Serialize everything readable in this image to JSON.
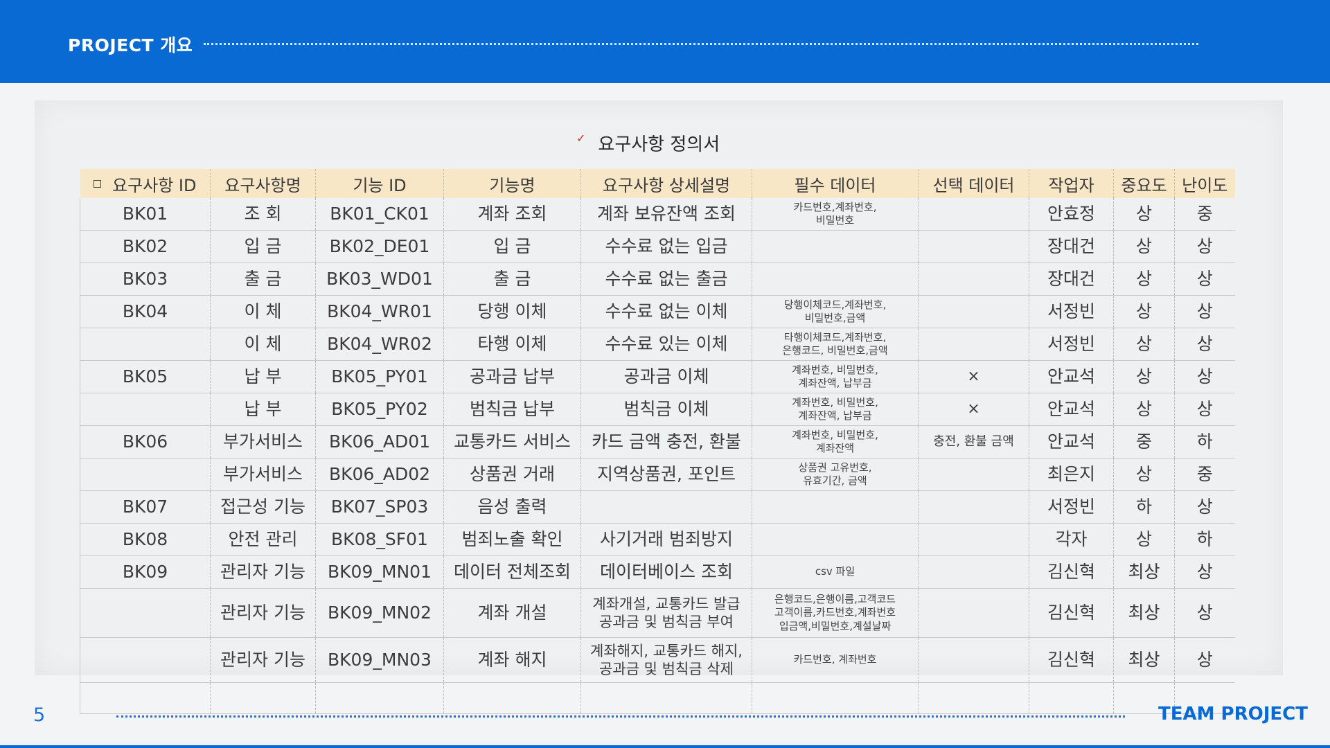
{
  "header": {
    "title": "PROJECT 개요"
  },
  "document": {
    "title": "요구사항 정의서"
  },
  "table": {
    "headers": [
      "요구사항 ID",
      "요구사항명",
      "기능 ID",
      "기능명",
      "요구사항 상세설명",
      "필수 데이터",
      "선택 데이터",
      "작업자",
      "중요도",
      "난이도"
    ],
    "rows": [
      {
        "req_id": "BK01",
        "req_name": "조 회",
        "func_id": "BK01_CK01",
        "func_name": "계좌 조회",
        "detail": "계좌 보유잔액 조회",
        "required": "카드번호,계좌번호,\n비밀번호",
        "optional": "",
        "worker": "안효정",
        "importance": "상",
        "difficulty": "중"
      },
      {
        "req_id": "BK02",
        "req_name": "입 금",
        "func_id": "BK02_DE01",
        "func_name": "입 금",
        "detail": "수수료 없는 입금",
        "required": "",
        "optional": "",
        "worker": "장대건",
        "importance": "상",
        "difficulty": "상"
      },
      {
        "req_id": "BK03",
        "req_name": "출 금",
        "func_id": "BK03_WD01",
        "func_name": "출 금",
        "detail": "수수료 없는 출금",
        "required": "",
        "optional": "",
        "worker": "장대건",
        "importance": "상",
        "difficulty": "상"
      },
      {
        "req_id": "BK04",
        "req_name": "이 체",
        "func_id": "BK04_WR01",
        "func_name": "당행 이체",
        "detail": "수수료 없는 이체",
        "required": "당행이체코드,계좌번호,\n비밀번호,금액",
        "optional": "",
        "worker": "서정빈",
        "importance": "상",
        "difficulty": "상"
      },
      {
        "req_id": "",
        "req_name": "이 체",
        "func_id": "BK04_WR02",
        "func_name": "타행 이체",
        "detail": "수수료 있는 이체",
        "required": "타행이체코드,계좌번호,\n은행코드, 비밀번호,금액",
        "optional": "",
        "worker": "서정빈",
        "importance": "상",
        "difficulty": "상"
      },
      {
        "req_id": "BK05",
        "req_name": "납 부",
        "func_id": "BK05_PY01",
        "func_name": "공과금 납부",
        "detail": "공과금 이체",
        "required": "계좌번호, 비밀번호,\n계좌잔액, 납부금",
        "optional": "×",
        "worker": "안교석",
        "importance": "상",
        "difficulty": "상"
      },
      {
        "req_id": "",
        "req_name": "납 부",
        "func_id": "BK05_PY02",
        "func_name": "범칙금 납부",
        "detail": "범칙금 이체",
        "required": "계좌번호, 비밀번호,\n계좌잔액, 납부금",
        "optional": "×",
        "worker": "안교석",
        "importance": "상",
        "difficulty": "상"
      },
      {
        "req_id": "BK06",
        "req_name": "부가서비스",
        "func_id": "BK06_AD01",
        "func_name": "교통카드 서비스",
        "detail": "카드 금액 충전, 환불",
        "required": "계좌번호, 비밀번호,\n계좌잔액",
        "optional": "충전, 환불 금액",
        "worker": "안교석",
        "importance": "중",
        "difficulty": "하"
      },
      {
        "req_id": "",
        "req_name": "부가서비스",
        "func_id": "BK06_AD02",
        "func_name": "상품권 거래",
        "detail": "지역상품권, 포인트",
        "required": "상품권 고유번호,\n유효기간, 금액",
        "optional": "",
        "worker": "최은지",
        "importance": "상",
        "difficulty": "중"
      },
      {
        "req_id": "BK07",
        "req_name": "접근성 기능",
        "func_id": "BK07_SP03",
        "func_name": "음성 출력",
        "detail": "",
        "required": "",
        "optional": "",
        "worker": "서정빈",
        "importance": "하",
        "difficulty": "상"
      },
      {
        "req_id": "BK08",
        "req_name": "안전 관리",
        "func_id": "BK08_SF01",
        "func_name": "범죄노출 확인",
        "detail": "사기거래  범죄방지",
        "required": "",
        "optional": "",
        "worker": "각자",
        "importance": "상",
        "difficulty": "하"
      },
      {
        "req_id": "BK09",
        "req_name": "관리자 기능",
        "func_id": "BK09_MN01",
        "func_name": "데이터 전체조회",
        "detail": "데이터베이스 조회",
        "required": "csv 파일",
        "optional": "",
        "worker": "김신혁",
        "importance": "최상",
        "difficulty": "상"
      },
      {
        "req_id": "",
        "req_name": "관리자 기능",
        "func_id": "BK09_MN02",
        "func_name": "계좌 개설",
        "detail": "계좌개설, 교통카드 발급\n공과금 및 범칙금 부여",
        "required": "은행코드,은행이름,고객코드\n고객이름,카드번호,계좌번호\n입금액,비밀번호,계설날짜",
        "optional": "",
        "worker": "김신혁",
        "importance": "최상",
        "difficulty": "상"
      },
      {
        "req_id": "",
        "req_name": "관리자 기능",
        "func_id": "BK09_MN03",
        "func_name": "계좌 해지",
        "detail": "계좌해지, 교통카드 해지,\n공과금 및 범칙금 삭제",
        "required": "카드번호, 계좌번호",
        "optional": "",
        "worker": "김신혁",
        "importance": "최상",
        "difficulty": "상"
      }
    ]
  },
  "footer": {
    "page_number": "5",
    "brand": "TEAM PROJECT"
  }
}
